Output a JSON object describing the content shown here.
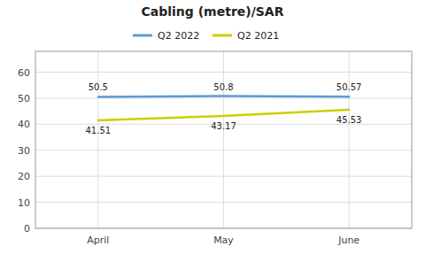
{
  "chart_data": {
    "type": "line",
    "title": "Cabling (metre)/SAR",
    "categories": [
      "April",
      "May",
      "June"
    ],
    "series": [
      {
        "name": "Q2 2022",
        "color": "#5B9BD5",
        "values": [
          50.5,
          50.8,
          50.57
        ]
      },
      {
        "name": "Q2 2021",
        "color": "#C9D000",
        "values": [
          41.51,
          43.17,
          45.53
        ]
      }
    ],
    "ylim": [
      0,
      68
    ],
    "yticks": [
      0,
      10,
      20,
      30,
      40,
      50,
      60
    ],
    "grid": true,
    "legend": "top",
    "data_labels": true
  }
}
